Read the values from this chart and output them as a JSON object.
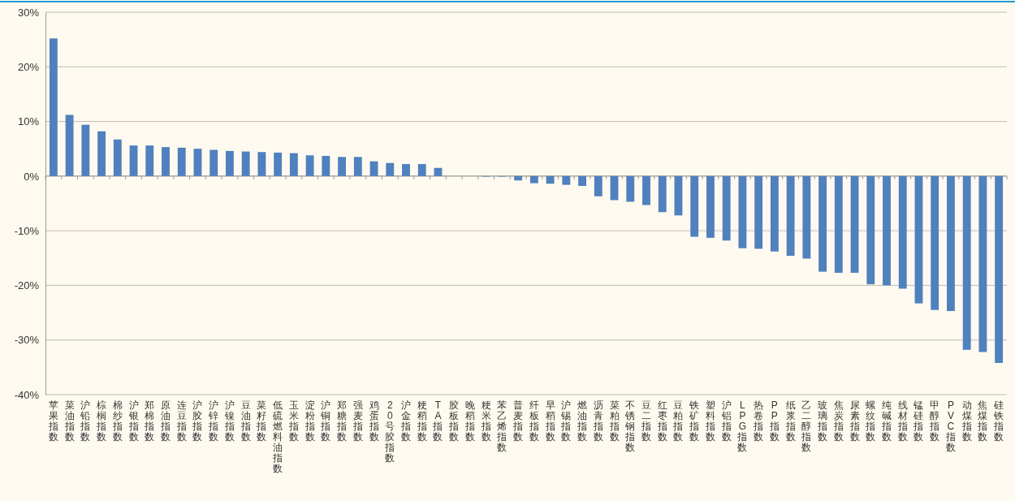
{
  "chart_data": {
    "type": "bar",
    "categories": [
      "苹果指数",
      "菜油指数",
      "沪铅指数",
      "棕榈指数",
      "棉纱指数",
      "沪银指数",
      "郑棉指数",
      "原油指数",
      "连豆指数",
      "沪胶指数",
      "沪锌指数",
      "沪镍指数",
      "豆油指数",
      "菜籽指数",
      "低硫燃料油指数",
      "玉米指数",
      "淀粉指数",
      "沪铜指数",
      "郑糖指数",
      "强麦指数",
      "鸡蛋指数",
      "20号胶指数",
      "沪金指数",
      "粳稻指数",
      "TA指数",
      "胶板指数",
      "晚稻指数",
      "粳米指数",
      "苯乙烯指数",
      "普麦指数",
      "纤板指数",
      "早稻指数",
      "沪锡指数",
      "燃油指数",
      "沥青指数",
      "菜粕指数",
      "不锈钢指数",
      "豆二指数",
      "红枣指数",
      "豆粕指数",
      "铁矿指数",
      "塑料指数",
      "沪铝指数",
      "LPG指数",
      "热卷指数",
      "PP指数",
      "纸浆指数",
      "乙二醇指数",
      "玻璃指数",
      "焦炭指数",
      "尿素指数",
      "螺纹指数",
      "纯碱指数",
      "线材指数",
      "锰硅指数",
      "甲醇指数",
      "PVC指数",
      "动煤指数",
      "焦煤指数",
      "硅铁指数"
    ],
    "values": [
      25.2,
      11.2,
      9.4,
      8.2,
      6.7,
      5.6,
      5.6,
      5.3,
      5.2,
      5.0,
      4.8,
      4.6,
      4.5,
      4.4,
      4.3,
      4.2,
      3.8,
      3.7,
      3.5,
      3.5,
      2.7,
      2.4,
      2.2,
      2.2,
      1.5,
      0,
      0,
      -0.1,
      -0.1,
      -0.8,
      -1.3,
      -1.4,
      -1.6,
      -1.8,
      -3.7,
      -4.4,
      -4.7,
      -5.3,
      -6.6,
      -7.2,
      -11.1,
      -11.3,
      -11.8,
      -13.2,
      -13.3,
      -13.8,
      -14.6,
      -15.1,
      -17.5,
      -17.7,
      -17.7,
      -19.8,
      -20.0,
      -20.6,
      -23.3,
      -24.5,
      -24.7,
      -31.8,
      -32.2,
      -34.2
    ],
    "color": "#4f81bd",
    "ylim": [
      -40,
      30
    ],
    "yticks": [
      {
        "value": -40,
        "label": "-40%"
      },
      {
        "value": -30,
        "label": "-30%"
      },
      {
        "value": -20,
        "label": "-20%"
      },
      {
        "value": -10,
        "label": "-10%"
      },
      {
        "value": 0,
        "label": "0%"
      },
      {
        "value": 10,
        "label": "10%"
      },
      {
        "value": 20,
        "label": "20%"
      },
      {
        "value": 30,
        "label": "30%"
      }
    ],
    "grid": "y"
  }
}
